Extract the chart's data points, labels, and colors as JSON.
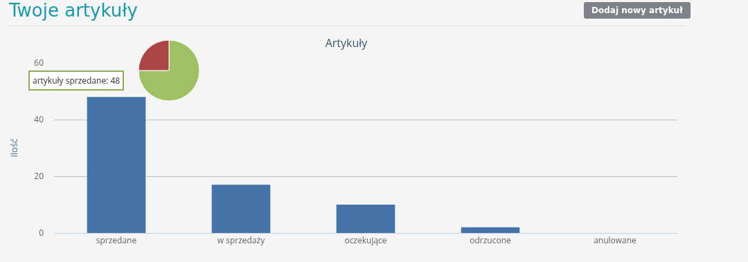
{
  "chart_data": [
    {
      "type": "bar",
      "title": "Twoje artykuły",
      "subtitle": "Artykuły",
      "ylabel": "Ilość",
      "categories": [
        "sprzedane",
        "w sprzedaży",
        "oczekujące",
        "odrzucone",
        "anulowane"
      ],
      "values": [
        48,
        17,
        10,
        2,
        0
      ],
      "color": "#4572a7",
      "ylim": [
        0,
        60
      ],
      "yticks": [
        0,
        20,
        40,
        60
      ],
      "grid": "y",
      "annotations": [
        "Dodaj nowy artykuł",
        {
          "text": "artykuły sprzedane: 48",
          "x": "sprzedane",
          "y": 48
        }
      ]
    },
    {
      "type": "pie",
      "categories": [
        null,
        null
      ],
      "values": [
        75,
        25
      ],
      "colors": [
        "#a0c064",
        "#aa4643"
      ]
    }
  ]
}
